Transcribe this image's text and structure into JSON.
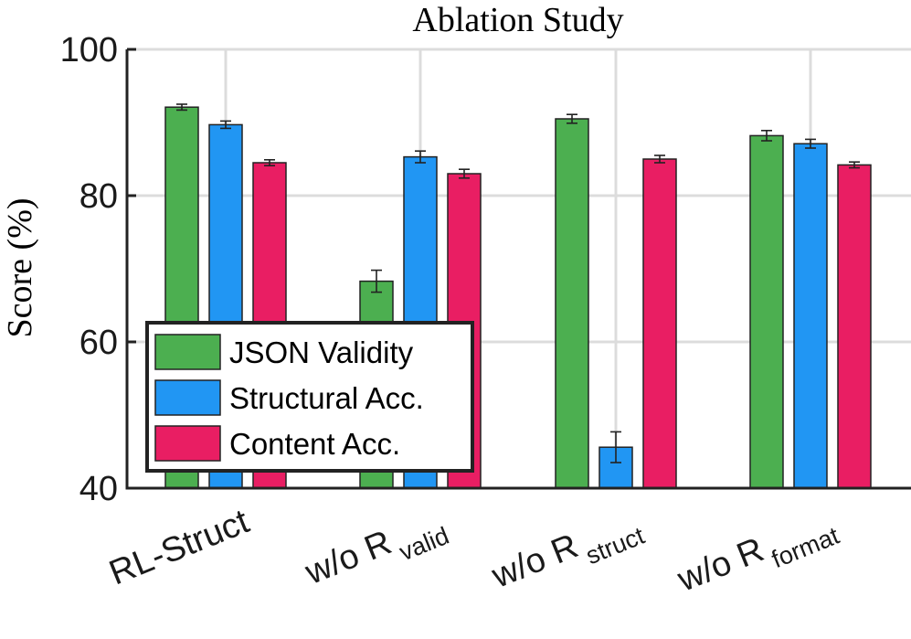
{
  "chart_data": {
    "type": "bar",
    "title": "Ablation Study",
    "xlabel": "",
    "ylabel": "Score (%)",
    "ylim": [
      40,
      100
    ],
    "yticks": [
      40,
      60,
      80,
      100
    ],
    "grid": true,
    "legend_position": "bottom-left",
    "categories": [
      {
        "main": "RL-Struct",
        "sub": ""
      },
      {
        "main": "w/o R",
        "sub": "valid"
      },
      {
        "main": "w/o R",
        "sub": "struct"
      },
      {
        "main": "w/o R",
        "sub": "format"
      }
    ],
    "series": [
      {
        "name": "JSON Validity",
        "color": "#4caf50",
        "values": [
          92.1,
          68.3,
          90.5,
          88.2
        ],
        "errors": [
          0.4,
          1.5,
          0.6,
          0.7
        ]
      },
      {
        "name": "Structural Acc.",
        "color": "#2196f3",
        "values": [
          89.7,
          85.3,
          45.6,
          87.1
        ],
        "errors": [
          0.5,
          0.8,
          2.1,
          0.6
        ]
      },
      {
        "name": "Content Acc.",
        "color": "#e91e63",
        "values": [
          84.5,
          83.0,
          85.0,
          84.2
        ],
        "errors": [
          0.4,
          0.6,
          0.5,
          0.4
        ]
      }
    ]
  }
}
